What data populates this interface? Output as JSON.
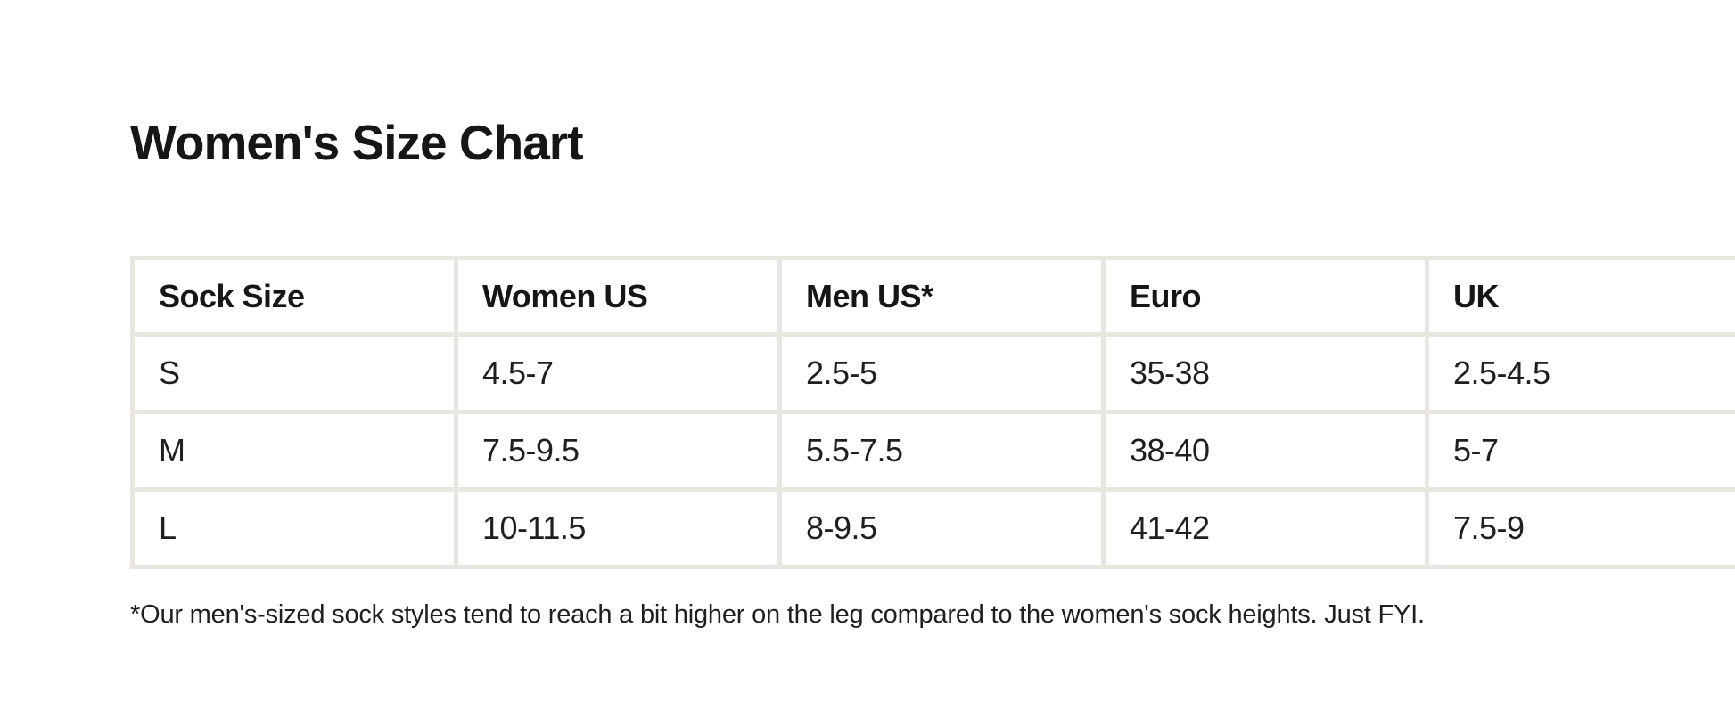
{
  "page": {
    "title": "Women's Size Chart",
    "footnote": "*Our men's-sized sock styles tend to reach a bit higher on the leg compared to the women's sock heights. Just FYI.",
    "colors": {
      "background": "#ffffff",
      "text": "#1f1f1f",
      "table_border": "#e9e6e0"
    }
  },
  "table": {
    "headers": [
      "Sock Size",
      "Women US",
      "Men US*",
      "Euro",
      "UK"
    ],
    "rows": [
      [
        "S",
        "4.5-7",
        "2.5-5",
        "35-38",
        "2.5-4.5"
      ],
      [
        "M",
        "7.5-9.5",
        "5.5-7.5",
        "38-40",
        "5-7"
      ],
      [
        "L",
        "10-11.5",
        "8-9.5",
        "41-42",
        "7.5-9"
      ]
    ]
  }
}
